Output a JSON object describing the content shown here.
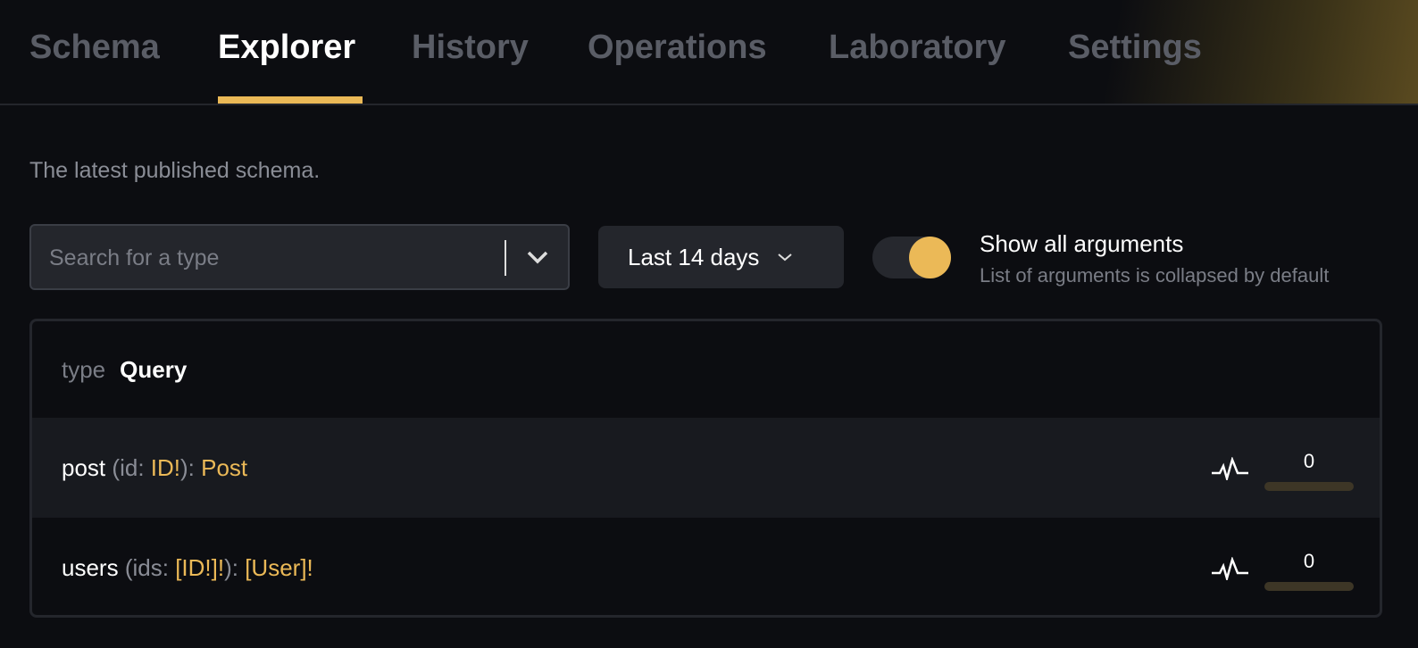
{
  "tabs": [
    {
      "label": "Schema"
    },
    {
      "label": "Explorer",
      "active": true
    },
    {
      "label": "History"
    },
    {
      "label": "Operations"
    },
    {
      "label": "Laboratory"
    },
    {
      "label": "Settings"
    }
  ],
  "subtitle": "The latest published schema.",
  "search": {
    "placeholder": "Search for a type",
    "value": ""
  },
  "date_range": {
    "label": "Last 14 days"
  },
  "toggle": {
    "label": "Show all arguments",
    "description": "List of arguments is collapsed by default",
    "on": true
  },
  "type_header": {
    "keyword": "type",
    "name": "Query"
  },
  "fields": [
    {
      "name": "post",
      "arg_name": "id",
      "arg_type": "ID!",
      "return_type": "Post",
      "count": "0",
      "usage_fraction": 0
    },
    {
      "name": "users",
      "arg_name": "ids",
      "arg_type": "[ID!]!",
      "return_type": "[User]!",
      "count": "0",
      "usage_fraction": 0
    }
  ],
  "colors": {
    "accent": "#ebb957",
    "background": "#0c0d11"
  }
}
